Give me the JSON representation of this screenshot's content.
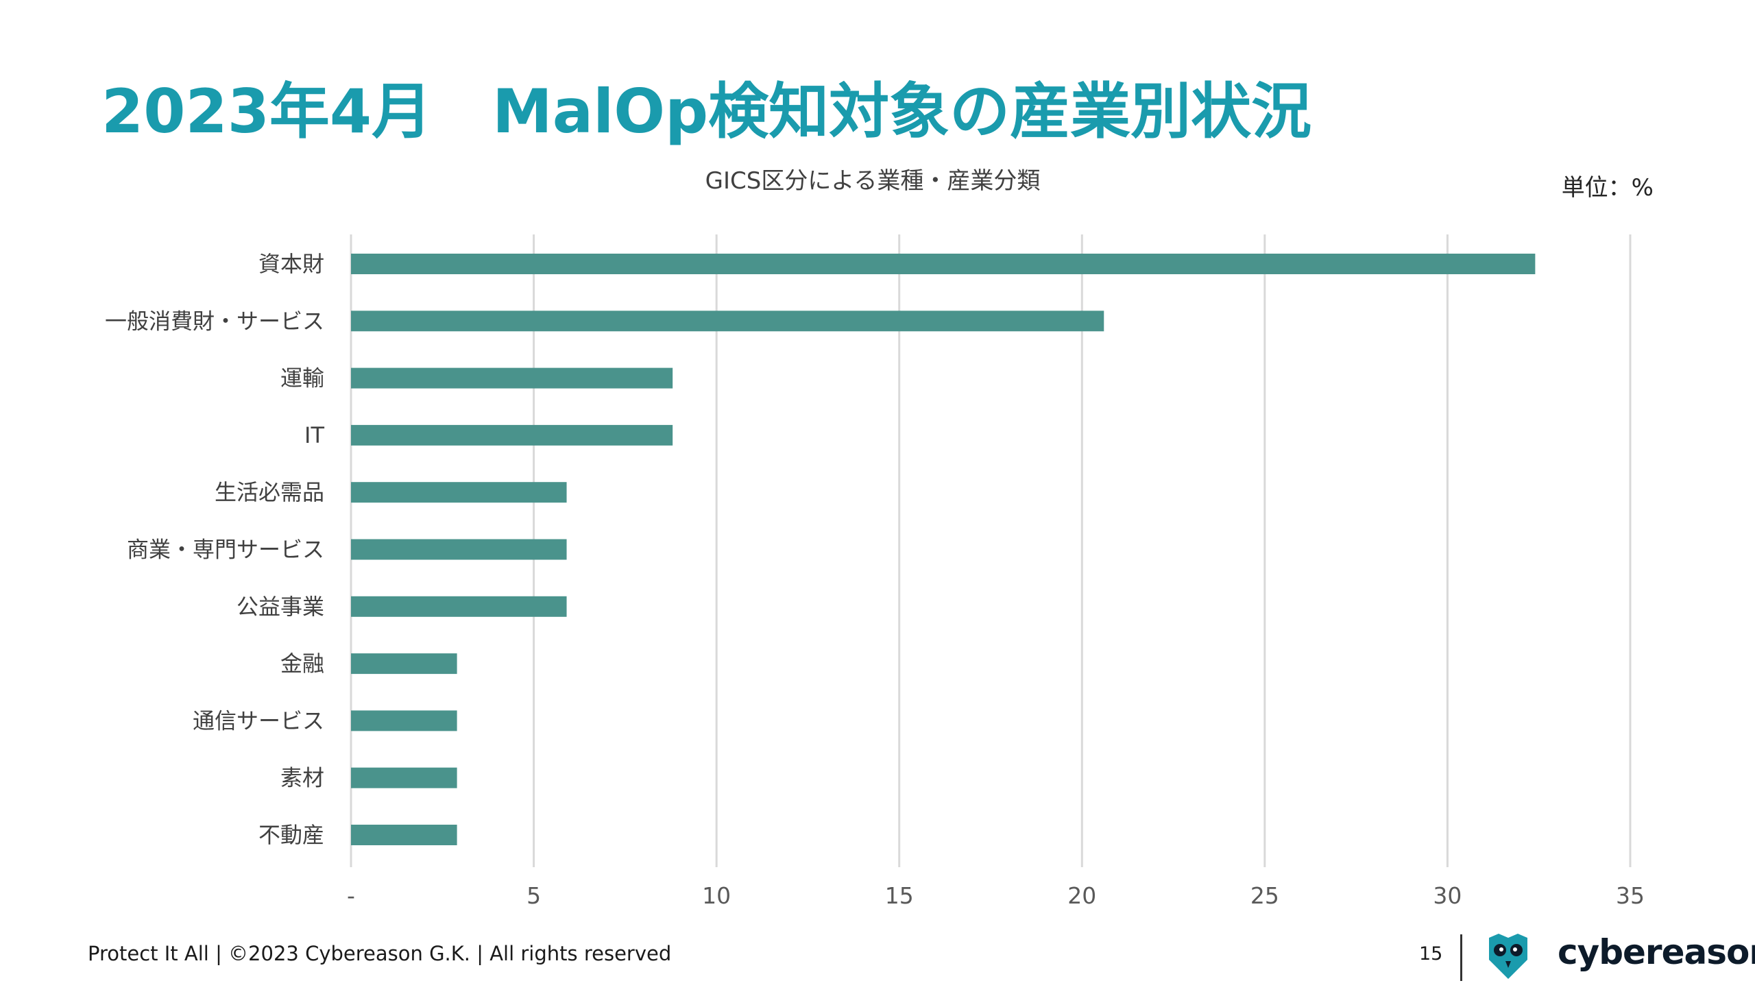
{
  "title": "2023年4月　MalOp検知対象の産業別状況",
  "unit_label": "単位：%",
  "footer": {
    "text": "Protect It All | ©2023 Cybereason G.K. | All rights reserved",
    "page_number": "15",
    "brand_name": "cybereason"
  },
  "colors": {
    "title": "#1a9bad",
    "bar": "#4a938c",
    "grid": "#d9d9d9",
    "brand_logo": "#1a9bad"
  },
  "icons": {
    "brand_logo": "owl-logo-icon"
  },
  "chart_data": {
    "type": "bar",
    "orientation": "horizontal",
    "title": "GICS区分による業種・産業分類",
    "categories": [
      "資本財",
      "一般消費財・サービス",
      "運輸",
      "IT",
      "生活必需品",
      "商業・専門サービス",
      "公益事業",
      "金融",
      "通信サービス",
      "素材",
      "不動産"
    ],
    "values": [
      32.4,
      20.6,
      8.8,
      8.8,
      5.9,
      5.9,
      5.9,
      2.9,
      2.9,
      2.9,
      2.9
    ],
    "xlim": [
      0,
      35
    ],
    "xticks": [
      "-",
      "5",
      "10",
      "15",
      "20",
      "25",
      "30",
      "35"
    ],
    "xlabel": "",
    "ylabel": "",
    "grid": true,
    "legend": "none"
  }
}
